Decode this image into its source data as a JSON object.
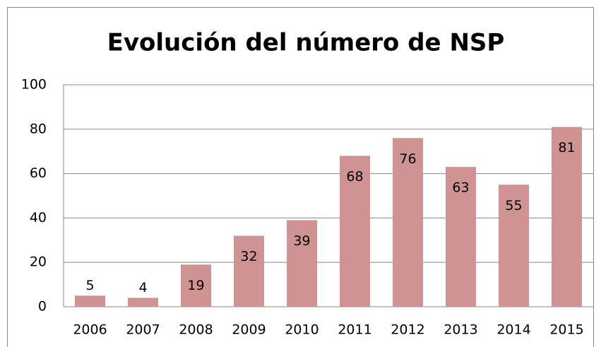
{
  "chart_data": {
    "type": "bar",
    "title": "Evolución del número de NSP",
    "categories": [
      "2006",
      "2007",
      "2008",
      "2009",
      "2010",
      "2011",
      "2012",
      "2013",
      "2014",
      "2015"
    ],
    "values": [
      5,
      4,
      19,
      32,
      39,
      68,
      76,
      63,
      55,
      81
    ],
    "color": "#d09393",
    "ylim": [
      0,
      100
    ],
    "yticks": [
      0,
      20,
      40,
      60,
      80,
      100
    ],
    "grid": true
  }
}
